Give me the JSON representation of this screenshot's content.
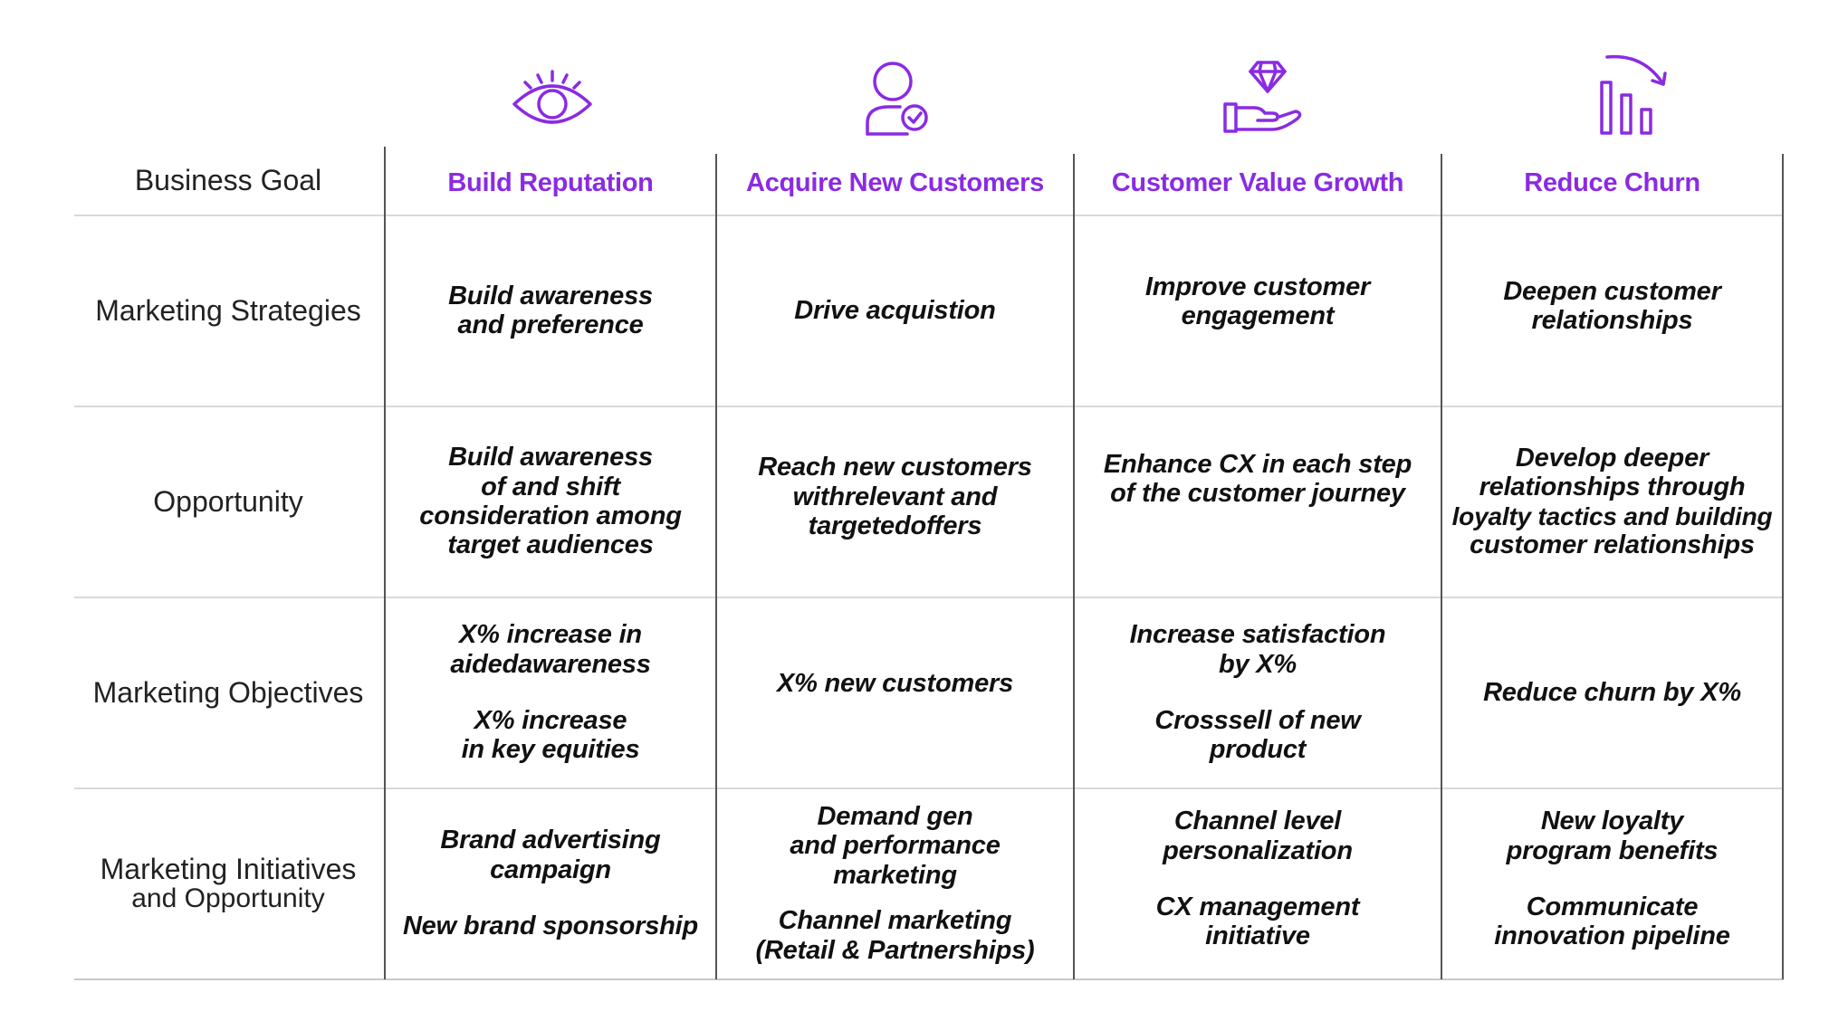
{
  "accent_color": "#8a2be2",
  "rows": {
    "business_goal": "Business Goal",
    "strategies": "Marketing Strategies",
    "opportunity": "Opportunity",
    "objectives": "Marketing Objectives",
    "initiatives_line1": "Marketing Initiatives",
    "initiatives_line2": "and Opportunity"
  },
  "columns": [
    {
      "icon": "eye-icon",
      "header": "Build Reputation",
      "strategy": [
        "Build awareness",
        "and preference"
      ],
      "opportunity": [
        "Build awareness",
        "of and shift",
        "consideration among",
        "target audiences"
      ],
      "objective_a": [
        "X% increase in",
        "aidedawareness"
      ],
      "objective_b": [
        "X% increase",
        "in key equities"
      ],
      "initiative_a": [
        "Brand advertising",
        "campaign"
      ],
      "initiative_b": [
        "New brand sponsorship"
      ]
    },
    {
      "icon": "user-check-icon",
      "header": "Acquire New Customers",
      "strategy": [
        "Drive acquistion"
      ],
      "opportunity": [
        "Reach new customers",
        "withrelevant and",
        "targetedoffers"
      ],
      "objective_a": [
        "X% new customers"
      ],
      "initiative_a": [
        "Demand gen",
        "and performance",
        "marketing"
      ],
      "initiative_b": [
        "Channel marketing",
        "(Retail & Partnerships)"
      ]
    },
    {
      "icon": "diamond-hand-icon",
      "header": "Customer Value Growth",
      "strategy": [
        "Improve customer",
        "engagement"
      ],
      "opportunity": [
        "Enhance CX in each step",
        "of the customer journey"
      ],
      "objective_a": [
        "Increase satisfaction",
        "by X%"
      ],
      "objective_b": [
        "Crosssell of new",
        "product"
      ],
      "initiative_a": [
        "Channel level",
        "personalization"
      ],
      "initiative_b": [
        "CX management",
        "initiative"
      ]
    },
    {
      "icon": "declining-bars-icon",
      "header": "Reduce Churn",
      "strategy": [
        "Deepen customer",
        "relationships"
      ],
      "opportunity": [
        "Develop deeper",
        "relationships through",
        "loyalty tactics and building",
        "customer relationships"
      ],
      "objective_a": [
        "Reduce churn by X%"
      ],
      "initiative_a": [
        "New loyalty",
        "program benefits"
      ],
      "initiative_b": [
        "Communicate",
        "innovation pipeline"
      ]
    }
  ]
}
